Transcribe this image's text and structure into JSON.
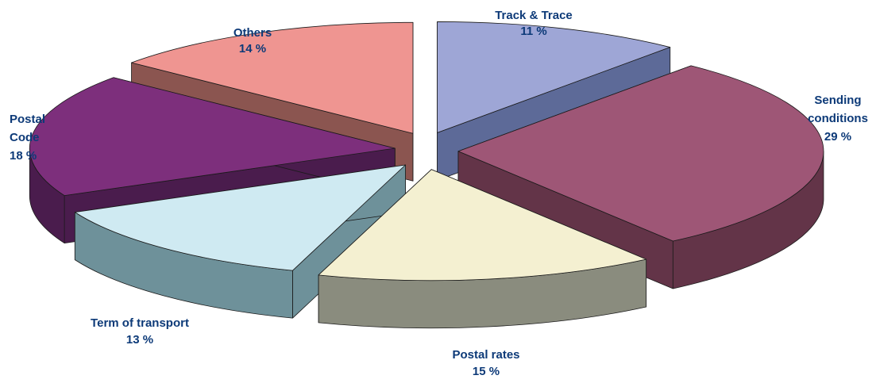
{
  "chart_data": {
    "type": "pie",
    "style": "3d-exploded",
    "title": "",
    "legend": "none",
    "slices": [
      {
        "label": "Track & Trace",
        "label_lines": [
          "Track & Trace",
          "11 %"
        ],
        "value": 11,
        "value_label": "11 %",
        "top_color": "#9ea6d6",
        "side_color": "#5d6a98"
      },
      {
        "label": "Sending conditions",
        "label_lines": [
          "Sending",
          "conditions",
          "29 %"
        ],
        "value": 29,
        "value_label": "29 %",
        "top_color": "#9e5676",
        "side_color": "#633448"
      },
      {
        "label": "Postal rates",
        "label_lines": [
          "Postal rates",
          "15 %"
        ],
        "value": 15,
        "value_label": "15 %",
        "top_color": "#f4f0d1",
        "side_color": "#8a8c7e"
      },
      {
        "label": "Term of transport",
        "label_lines": [
          "Term of transport",
          "13 %"
        ],
        "value": 13,
        "value_label": "13 %",
        "top_color": "#cfeaf2",
        "side_color": "#6e919a"
      },
      {
        "label": "Postal Code",
        "label_lines": [
          "Postal",
          "Code",
          "18 %"
        ],
        "value": 18,
        "value_label": "18 %",
        "top_color": "#7d2f7c",
        "side_color": "#4a1c4d"
      },
      {
        "label": "Others",
        "label_lines": [
          "Others",
          "14 %"
        ],
        "value": 14,
        "value_label": "14 %",
        "top_color": "#ef9591",
        "side_color": "#8b5550"
      }
    ]
  }
}
